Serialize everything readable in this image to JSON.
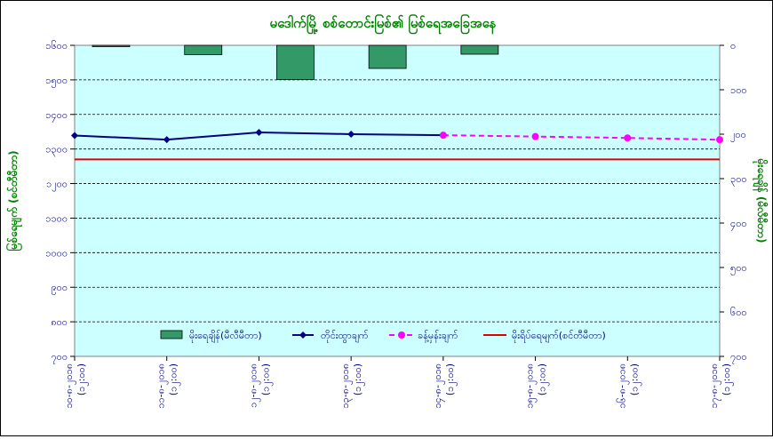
{
  "chart_data": {
    "type": "bar+line",
    "title": "မဒေါက်မြို့ စစ်တောင်းမြစ်၏ မြစ်ရေအခြေအနေ",
    "ylabel_left": "မြစ်ရေမျက် (စင်တီမီတာ)",
    "ylabel_right": "မိုးရေချိန် (မီလီမီတာ)",
    "y_left": {
      "lim": [
        700,
        1600
      ],
      "ticks": [
        700,
        800,
        900,
        1000,
        1100,
        1200,
        1300,
        1400,
        1500,
        1600
      ],
      "tick_labels": [
        "၇၀၀",
        "၈၀၀",
        "၉၀၀",
        "၁၀၀၀",
        "၁၁၀၀",
        "၁၂၀၀",
        "၁၃၀၀",
        "၁၄၀၀",
        "၁၅၀၀",
        "၁၆၀၀"
      ]
    },
    "y_right": {
      "lim": [
        0,
        700
      ],
      "inverted": true,
      "ticks": [
        0,
        100,
        200,
        300,
        400,
        500,
        600,
        700
      ],
      "tick_labels": [
        "၀",
        "၁၀၀",
        "၂၀၀",
        "၃၀၀",
        "၄၀၀",
        "၅၀၀",
        "၆၀၀",
        "၇၀၀"
      ]
    },
    "categories": [
      "၁၀-၈-၂၀၁၈",
      "၁၁-၈-၂၀၁၈",
      "၁၂-၈-၂၀၁၈",
      "၁၃-၈-၂၀၁၈",
      "၁၄-၈-၂၀၁၈",
      "၁၅-၈-၂၀၁၈",
      "၁၆-၈-၂၀၁၈",
      "၁၇-၈-၂၀၁၈"
    ],
    "category_labels": [
      [
        "၁၀-၈-၂၀၁၈",
        "(၁၂:၀၀)"
      ],
      [
        "၁၁-၈-၂၀၁၈",
        "(၁၂:၀၀)"
      ],
      [
        "၁၂-၈-၂၀၁၈",
        "(၁၂:၀၀)"
      ],
      [
        "၁၃-၈-၂၀၁၈",
        "(၁၂:၀၀)"
      ],
      [
        "၁၄-၈-၂၀၁၈",
        "(၁၂:၀၀)"
      ],
      [
        "၁၅-၈-၂၀၁၈",
        "(၁၂:၀၀)"
      ],
      [
        "၁၆-၈-၂၀၁၈",
        "(၁၂:၀၀)"
      ],
      [
        "၁၇-၈-၂၀၁၈",
        "(၁၂:၀၀)"
      ]
    ],
    "series": [
      {
        "name": "မိုးရေချိန်(မီလီမီတာ)",
        "kind": "bar",
        "axis": "right",
        "color": "#339966",
        "values": [
          0.5,
          21,
          77,
          52,
          20,
          null,
          null,
          null
        ]
      },
      {
        "name": "တိုင်းထွာချက်",
        "kind": "line",
        "axis": "left",
        "color": "#000080",
        "marker": "diamond",
        "values": [
          1339,
          1327,
          1348,
          1343,
          1340,
          null,
          null,
          null
        ]
      },
      {
        "name": "ခန့်မှန်းချက်",
        "kind": "line",
        "axis": "left",
        "color": "#ff00ff",
        "marker": "circle",
        "dash": true,
        "values": [
          null,
          null,
          null,
          null,
          1340,
          1336,
          1332,
          1327
        ]
      },
      {
        "name": "မိုးရိပ်ရေမျက်(စင်တီမီတာ)",
        "kind": "hline",
        "axis": "left",
        "color": "#e00000",
        "value": 1270
      }
    ],
    "grid": true,
    "legend_position": "bottom-inside",
    "colors": {
      "plot_bg": "#ccffff",
      "axis_text": "#000080",
      "title": "#008000"
    }
  }
}
